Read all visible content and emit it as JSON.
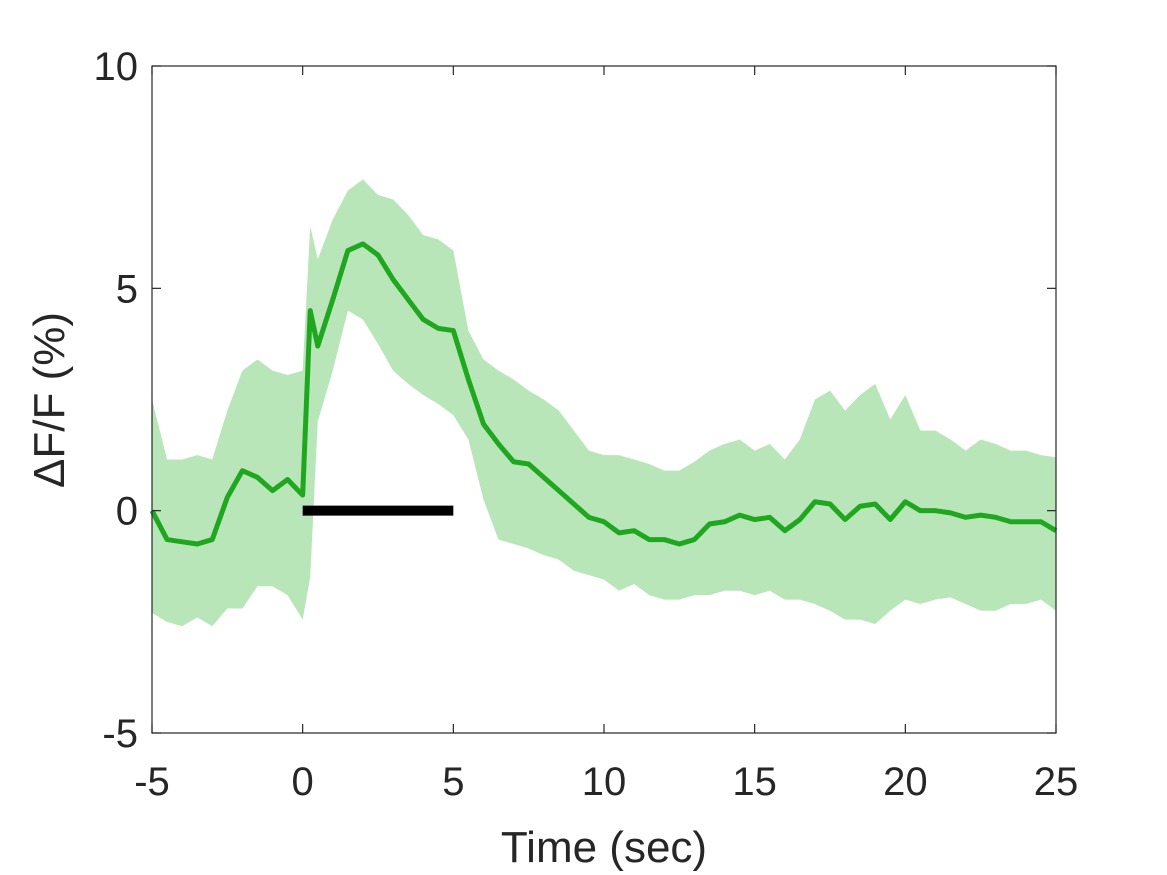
{
  "chart_data": {
    "type": "line",
    "xlabel": "Time (sec)",
    "ylabel": "ΔF/F (%)",
    "xlim": [
      -5,
      25
    ],
    "ylim": [
      -5,
      10
    ],
    "xticks": [
      -5,
      0,
      5,
      10,
      15,
      20,
      25
    ],
    "yticks": [
      -5,
      0,
      5,
      10
    ],
    "color": "#1fa81f",
    "band_color": "#b8e6b8",
    "x": [
      -5,
      -4.5,
      -4,
      -3.5,
      -3,
      -2.5,
      -2,
      -1.5,
      -1,
      -0.5,
      0,
      0.25,
      0.5,
      1,
      1.5,
      2,
      2.5,
      3,
      3.5,
      4,
      4.5,
      5,
      5.5,
      6,
      6.5,
      7,
      7.5,
      8,
      8.5,
      9,
      9.5,
      10,
      10.5,
      11,
      11.5,
      12,
      12.5,
      13,
      13.5,
      14,
      14.5,
      15,
      15.5,
      16,
      16.5,
      17,
      17.5,
      18,
      18.5,
      19,
      19.5,
      20,
      20.5,
      21,
      21.5,
      22,
      22.5,
      23,
      23.5,
      24,
      24.5,
      25
    ],
    "values": [
      0,
      -0.65,
      -0.7,
      -0.75,
      -0.65,
      0.3,
      0.9,
      0.75,
      0.45,
      0.7,
      0.35,
      4.5,
      3.7,
      4.75,
      5.85,
      6.0,
      5.75,
      5.2,
      4.75,
      4.3,
      4.1,
      4.05,
      2.95,
      1.95,
      1.5,
      1.1,
      1.05,
      0.75,
      0.45,
      0.15,
      -0.15,
      -0.25,
      -0.5,
      -0.45,
      -0.65,
      -0.65,
      -0.75,
      -0.65,
      -0.3,
      -0.25,
      -0.1,
      -0.2,
      -0.15,
      -0.45,
      -0.2,
      0.2,
      0.15,
      -0.2,
      0.1,
      0.15,
      -0.2,
      0.2,
      0,
      0,
      -0.05,
      -0.15,
      -0.1,
      -0.15,
      -0.25,
      -0.25,
      -0.25,
      -0.45
    ],
    "band": {
      "upper": [
        2.5,
        1.15,
        1.15,
        1.25,
        1.15,
        2.25,
        3.15,
        3.4,
        3.15,
        3.05,
        3.15,
        6.4,
        5.65,
        6.55,
        7.2,
        7.45,
        7.1,
        7.0,
        6.65,
        6.2,
        6.1,
        5.85,
        4.05,
        3.4,
        3.15,
        2.95,
        2.7,
        2.5,
        2.25,
        1.8,
        1.35,
        1.25,
        1.25,
        1.15,
        1.05,
        0.9,
        0.9,
        1.1,
        1.35,
        1.5,
        1.6,
        1.35,
        1.5,
        1.15,
        1.6,
        2.5,
        2.7,
        2.25,
        2.6,
        2.85,
        2.05,
        2.6,
        1.8,
        1.8,
        1.6,
        1.35,
        1.6,
        1.5,
        1.35,
        1.35,
        1.25,
        1.2
      ],
      "lower": [
        -2.3,
        -2.5,
        -2.6,
        -2.4,
        -2.6,
        -2.2,
        -2.2,
        -1.7,
        -1.7,
        -1.9,
        -2.45,
        -1.5,
        2.0,
        3.15,
        4.5,
        4.3,
        3.75,
        3.15,
        2.85,
        2.6,
        2.4,
        2.15,
        1.6,
        0.25,
        -0.65,
        -0.75,
        -0.85,
        -1.0,
        -1.1,
        -1.35,
        -1.45,
        -1.55,
        -1.8,
        -1.65,
        -1.9,
        -2.0,
        -2.0,
        -1.9,
        -1.9,
        -1.8,
        -1.8,
        -1.9,
        -1.8,
        -2.0,
        -2.0,
        -2.1,
        -2.25,
        -2.45,
        -2.45,
        -2.55,
        -2.25,
        -2.0,
        -2.1,
        -2.0,
        -1.95,
        -2.1,
        -2.25,
        -2.25,
        -2.1,
        -2.1,
        -2.0,
        -2.25
      ]
    },
    "stimulus": {
      "x": [
        0,
        5
      ],
      "y": 0,
      "color": "#000000"
    }
  }
}
